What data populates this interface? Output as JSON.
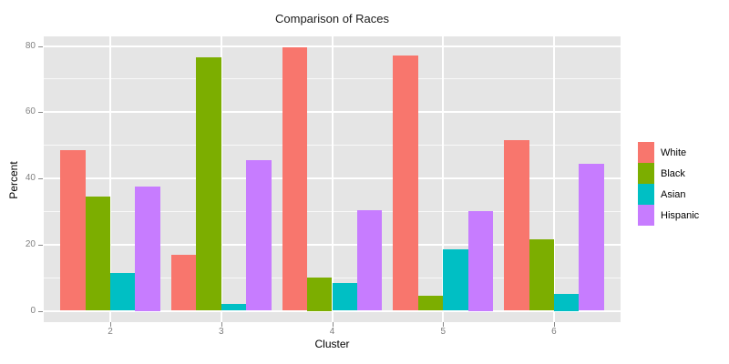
{
  "title": "Comparison of Races",
  "chart_data": {
    "type": "bar",
    "title": "Comparison of Races",
    "xlabel": "Cluster",
    "ylabel": "Percent",
    "categories": [
      "2",
      "3",
      "4",
      "5",
      "6"
    ],
    "series": [
      {
        "name": "White",
        "color": "#F8766D",
        "values": [
          48.5,
          17,
          79.5,
          77,
          51.5
        ]
      },
      {
        "name": "Black",
        "color": "#7CAE00",
        "values": [
          34.5,
          76.5,
          10,
          4.5,
          21.5
        ]
      },
      {
        "name": "Asian",
        "color": "#00BFC4",
        "values": [
          11.5,
          2,
          8.5,
          18.5,
          5
        ]
      },
      {
        "name": "Hispanic",
        "color": "#C77CFF",
        "values": [
          37.5,
          45.5,
          30.5,
          30,
          44.5
        ]
      }
    ],
    "y_ticks": [
      0,
      20,
      40,
      60,
      80
    ],
    "y_minor_ticks": [
      10,
      30,
      50,
      70
    ],
    "ylim": [
      0,
      80
    ],
    "grid": "on",
    "legend_position": "right",
    "panel_bg": "#E5E5E5",
    "grid_color": "#FFFFFF",
    "tick_label_color": "#7F7F7F"
  },
  "legend": {
    "items": [
      {
        "label": "White",
        "color": "#F8766D"
      },
      {
        "label": "Black",
        "color": "#7CAE00"
      },
      {
        "label": "Asian",
        "color": "#00BFC4"
      },
      {
        "label": "Hispanic",
        "color": "#C77CFF"
      }
    ]
  }
}
